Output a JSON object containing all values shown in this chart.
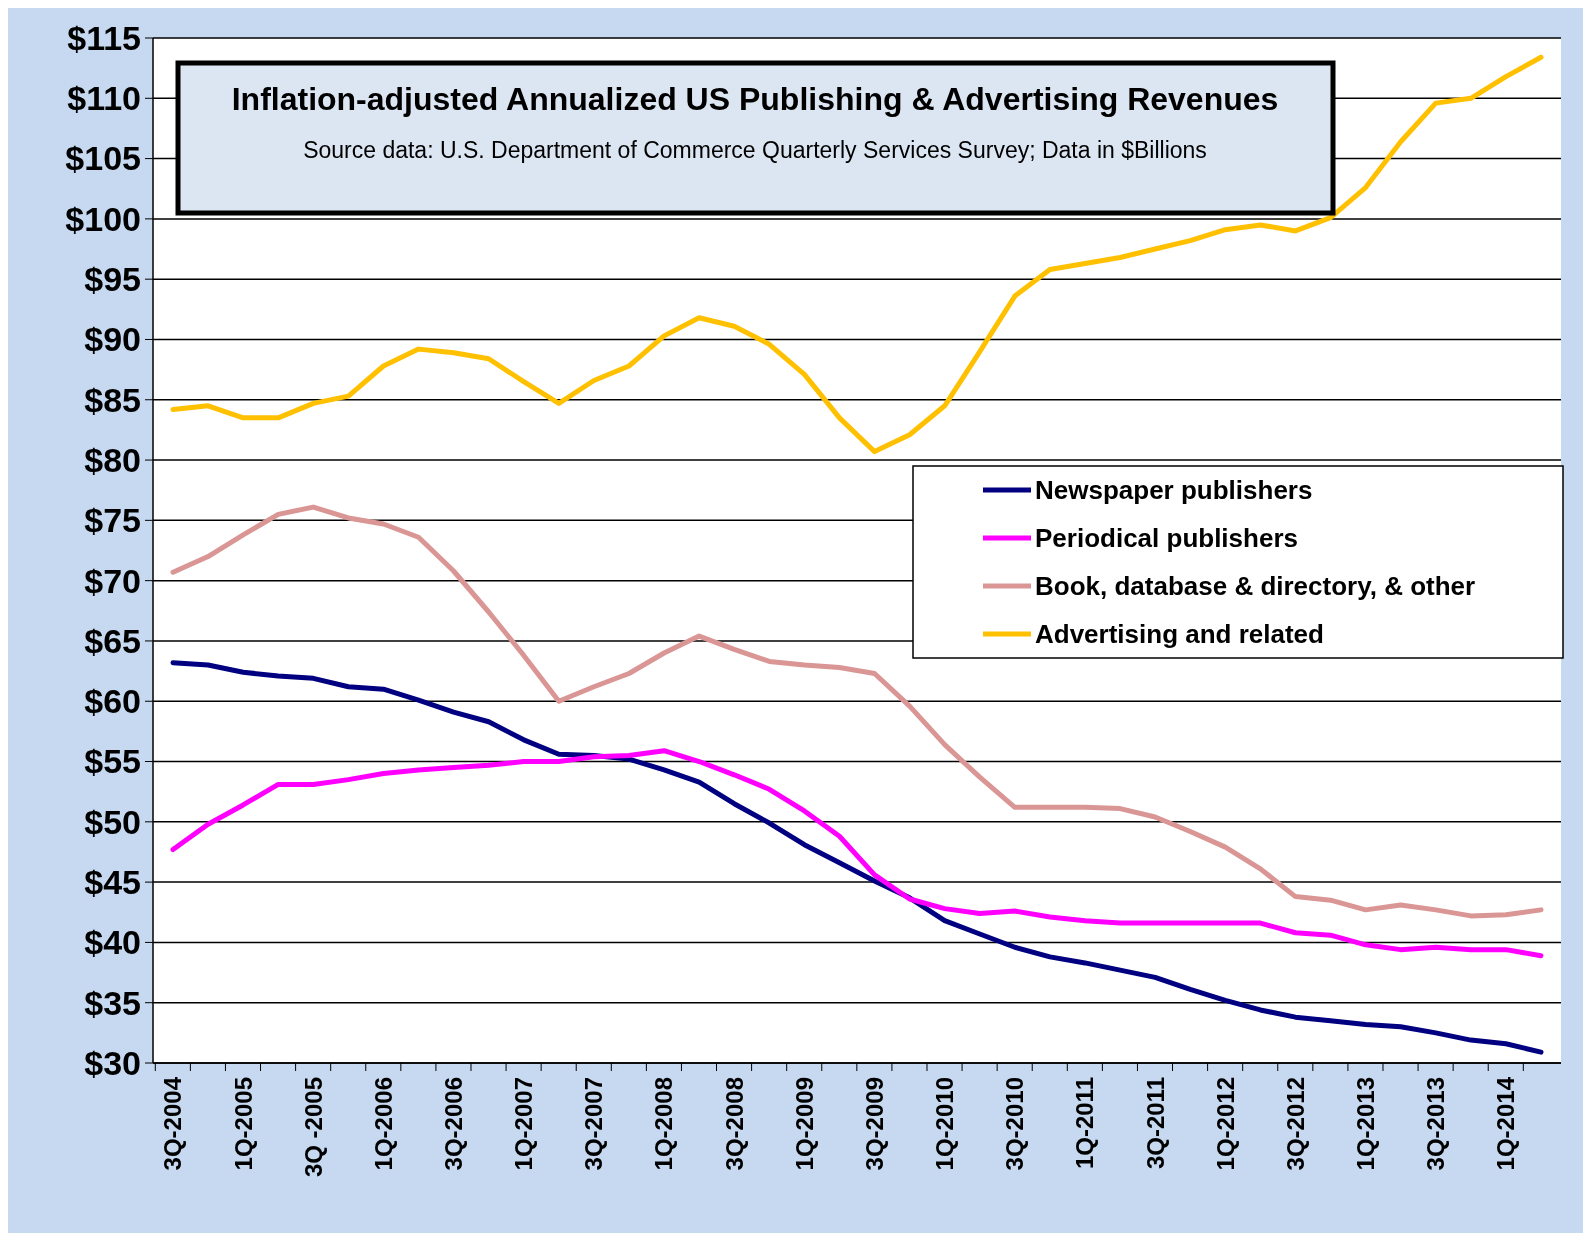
{
  "chart_data": {
    "type": "line",
    "title": "Inflation-adjusted Annualized US Publishing & Advertising Revenues",
    "subtitle": "Source data: U.S. Department of Commerce Quarterly Services Survey; Data in $Billions",
    "categories": [
      "3Q-2004",
      null,
      "1Q-2005",
      null,
      "3Q -2005",
      null,
      "1Q-2006",
      null,
      "3Q-2006",
      null,
      "1Q-2007",
      null,
      "3Q-2007",
      null,
      "1Q-2008",
      null,
      "3Q-2008",
      null,
      "1Q-2009",
      null,
      "3Q-2009",
      null,
      "1Q-2010",
      null,
      "3Q-2010",
      null,
      "1Q-2011",
      null,
      "3Q-2011",
      null,
      "1Q-2012",
      null,
      "3Q-2012",
      null,
      "1Q-2013",
      null,
      "3Q-2013",
      null,
      "1Q-2014",
      null
    ],
    "series": [
      {
        "name": "Newspaper publishers",
        "color": "#000080",
        "values": [
          63.2,
          63.0,
          62.4,
          62.1,
          61.9,
          61.2,
          61.0,
          60.1,
          59.1,
          58.3,
          56.8,
          55.6,
          55.5,
          55.2,
          54.3,
          53.3,
          51.5,
          49.9,
          48.1,
          46.6,
          45.1,
          43.7,
          41.8,
          40.7,
          39.6,
          38.8,
          38.3,
          37.7,
          37.1,
          36.1,
          35.2,
          34.4,
          33.8,
          33.5,
          33.2,
          33.0,
          32.5,
          31.9,
          31.6,
          30.9
        ]
      },
      {
        "name": "Periodical publishers",
        "color": "#ff00ff",
        "values": [
          47.7,
          49.8,
          51.4,
          53.1,
          53.1,
          53.5,
          54.0,
          54.3,
          54.5,
          54.7,
          55.0,
          55.0,
          55.4,
          55.5,
          55.9,
          55.0,
          53.9,
          52.7,
          50.9,
          48.8,
          45.6,
          43.6,
          42.8,
          42.4,
          42.6,
          42.1,
          41.8,
          41.6,
          41.6,
          41.6,
          41.6,
          41.6,
          40.8,
          40.6,
          39.8,
          39.4,
          39.6,
          39.4,
          39.4,
          38.9
        ]
      },
      {
        "name": "Book, database & directory, & other",
        "color": "#d99694",
        "values": [
          70.7,
          72.0,
          73.8,
          75.5,
          76.1,
          75.2,
          74.7,
          73.6,
          70.8,
          67.4,
          63.8,
          60.0,
          61.2,
          62.3,
          64.0,
          65.4,
          64.3,
          63.3,
          63.0,
          62.8,
          62.3,
          59.6,
          56.4,
          53.7,
          51.2,
          51.2,
          51.2,
          51.1,
          50.4,
          49.2,
          47.9,
          46.1,
          43.8,
          43.5,
          42.7,
          43.1,
          42.7,
          42.2,
          42.3,
          42.7
        ]
      },
      {
        "name": "Advertising and related",
        "color": "#ffc000",
        "values": [
          84.2,
          84.5,
          83.5,
          83.5,
          84.7,
          85.3,
          87.8,
          89.2,
          88.9,
          88.4,
          86.5,
          84.7,
          86.6,
          87.8,
          90.3,
          91.8,
          91.1,
          89.6,
          87.1,
          83.5,
          80.7,
          82.1,
          84.5,
          89.0,
          93.6,
          95.8,
          96.3,
          96.8,
          97.5,
          98.2,
          99.1,
          99.5,
          99.0,
          100.1,
          102.6,
          106.4,
          109.6,
          110.0,
          111.8,
          113.4
        ]
      }
    ],
    "ylim": [
      30,
      115
    ],
    "yticks": [
      {
        "value": 30,
        "label": "$30"
      },
      {
        "value": 35,
        "label": "$35"
      },
      {
        "value": 40,
        "label": "$40"
      },
      {
        "value": 45,
        "label": "$45"
      },
      {
        "value": 50,
        "label": "$50"
      },
      {
        "value": 55,
        "label": "$55"
      },
      {
        "value": 60,
        "label": "$60"
      },
      {
        "value": 65,
        "label": "$65"
      },
      {
        "value": 70,
        "label": "$70"
      },
      {
        "value": 75,
        "label": "$75"
      },
      {
        "value": 80,
        "label": "$80"
      },
      {
        "value": 85,
        "label": "$85"
      },
      {
        "value": 90,
        "label": "$90"
      },
      {
        "value": 95,
        "label": "$95"
      },
      {
        "value": 100,
        "label": "$100"
      },
      {
        "value": 105,
        "label": "$105"
      },
      {
        "value": 110,
        "label": "$110"
      },
      {
        "value": 115,
        "label": "$115"
      }
    ],
    "grid": "y",
    "legend": "right",
    "marker": "none",
    "line_style": "solid"
  }
}
